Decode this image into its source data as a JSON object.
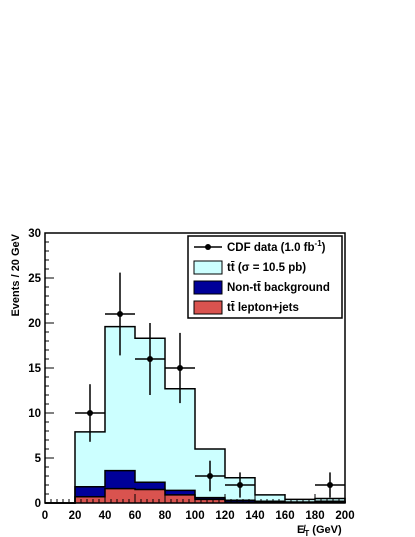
{
  "chart_data": {
    "type": "histogram",
    "xlabel": "E̸_T (GeV)",
    "xlabel_main": "E̸",
    "xlabel_sub": "T",
    "xlabel_unit": " (GeV)",
    "ylabel": "Events / 20 GeV",
    "xlim": [
      0,
      200
    ],
    "ylim": [
      0,
      30
    ],
    "x_ticks": [
      "0",
      "20",
      "40",
      "60",
      "80",
      "100",
      "120",
      "140",
      "160",
      "180",
      "200"
    ],
    "y_ticks": [
      "0",
      "5",
      "10",
      "15",
      "20",
      "25",
      "30"
    ],
    "bins": [
      [
        0,
        20
      ],
      [
        20,
        40
      ],
      [
        40,
        60
      ],
      [
        60,
        80
      ],
      [
        80,
        100
      ],
      [
        100,
        120
      ],
      [
        120,
        140
      ],
      [
        140,
        160
      ],
      [
        160,
        180
      ],
      [
        180,
        200
      ]
    ],
    "series": [
      {
        "name": "tt̄ (σ = 10.5 pb)",
        "color": "#ccffff",
        "values": [
          0,
          7.9,
          19.6,
          18.3,
          12.7,
          6.0,
          2.8,
          0.9,
          0.4,
          0.5
        ]
      },
      {
        "name": "Non-tt̄ background",
        "color": "#000099",
        "values": [
          0,
          1.8,
          3.6,
          2.3,
          1.4,
          0.6,
          0.3,
          0.2,
          0.1,
          0.1
        ]
      },
      {
        "name": "tt̄ lepton+jets",
        "color": "#d9534f",
        "values": [
          0,
          0.7,
          1.6,
          1.5,
          0.9,
          0.4,
          0.1,
          0.1,
          0.1,
          0.2
        ]
      }
    ],
    "data_points": {
      "name": "CDF data (1.0 fb⁻¹)",
      "x": [
        30,
        50,
        70,
        90,
        110,
        130,
        190
      ],
      "y": [
        10,
        21,
        16,
        15,
        3,
        2,
        2
      ],
      "yerr": [
        3.2,
        4.6,
        4.0,
        3.9,
        1.7,
        1.4,
        1.4
      ],
      "xerr": 10
    },
    "legend_position": "top-right",
    "legend": [
      {
        "label": "CDF data (1.0 fb",
        "sup": "-1",
        "tail": ")",
        "kind": "marker"
      },
      {
        "label": "tt̄ (σ = 10.5 pb)",
        "kind": "box",
        "color": "#ccffff"
      },
      {
        "label": "Non-tt̄ background",
        "kind": "box",
        "color": "#000099"
      },
      {
        "label": "tt̄ lepton+jets",
        "kind": "box",
        "color": "#d9534f"
      }
    ]
  }
}
